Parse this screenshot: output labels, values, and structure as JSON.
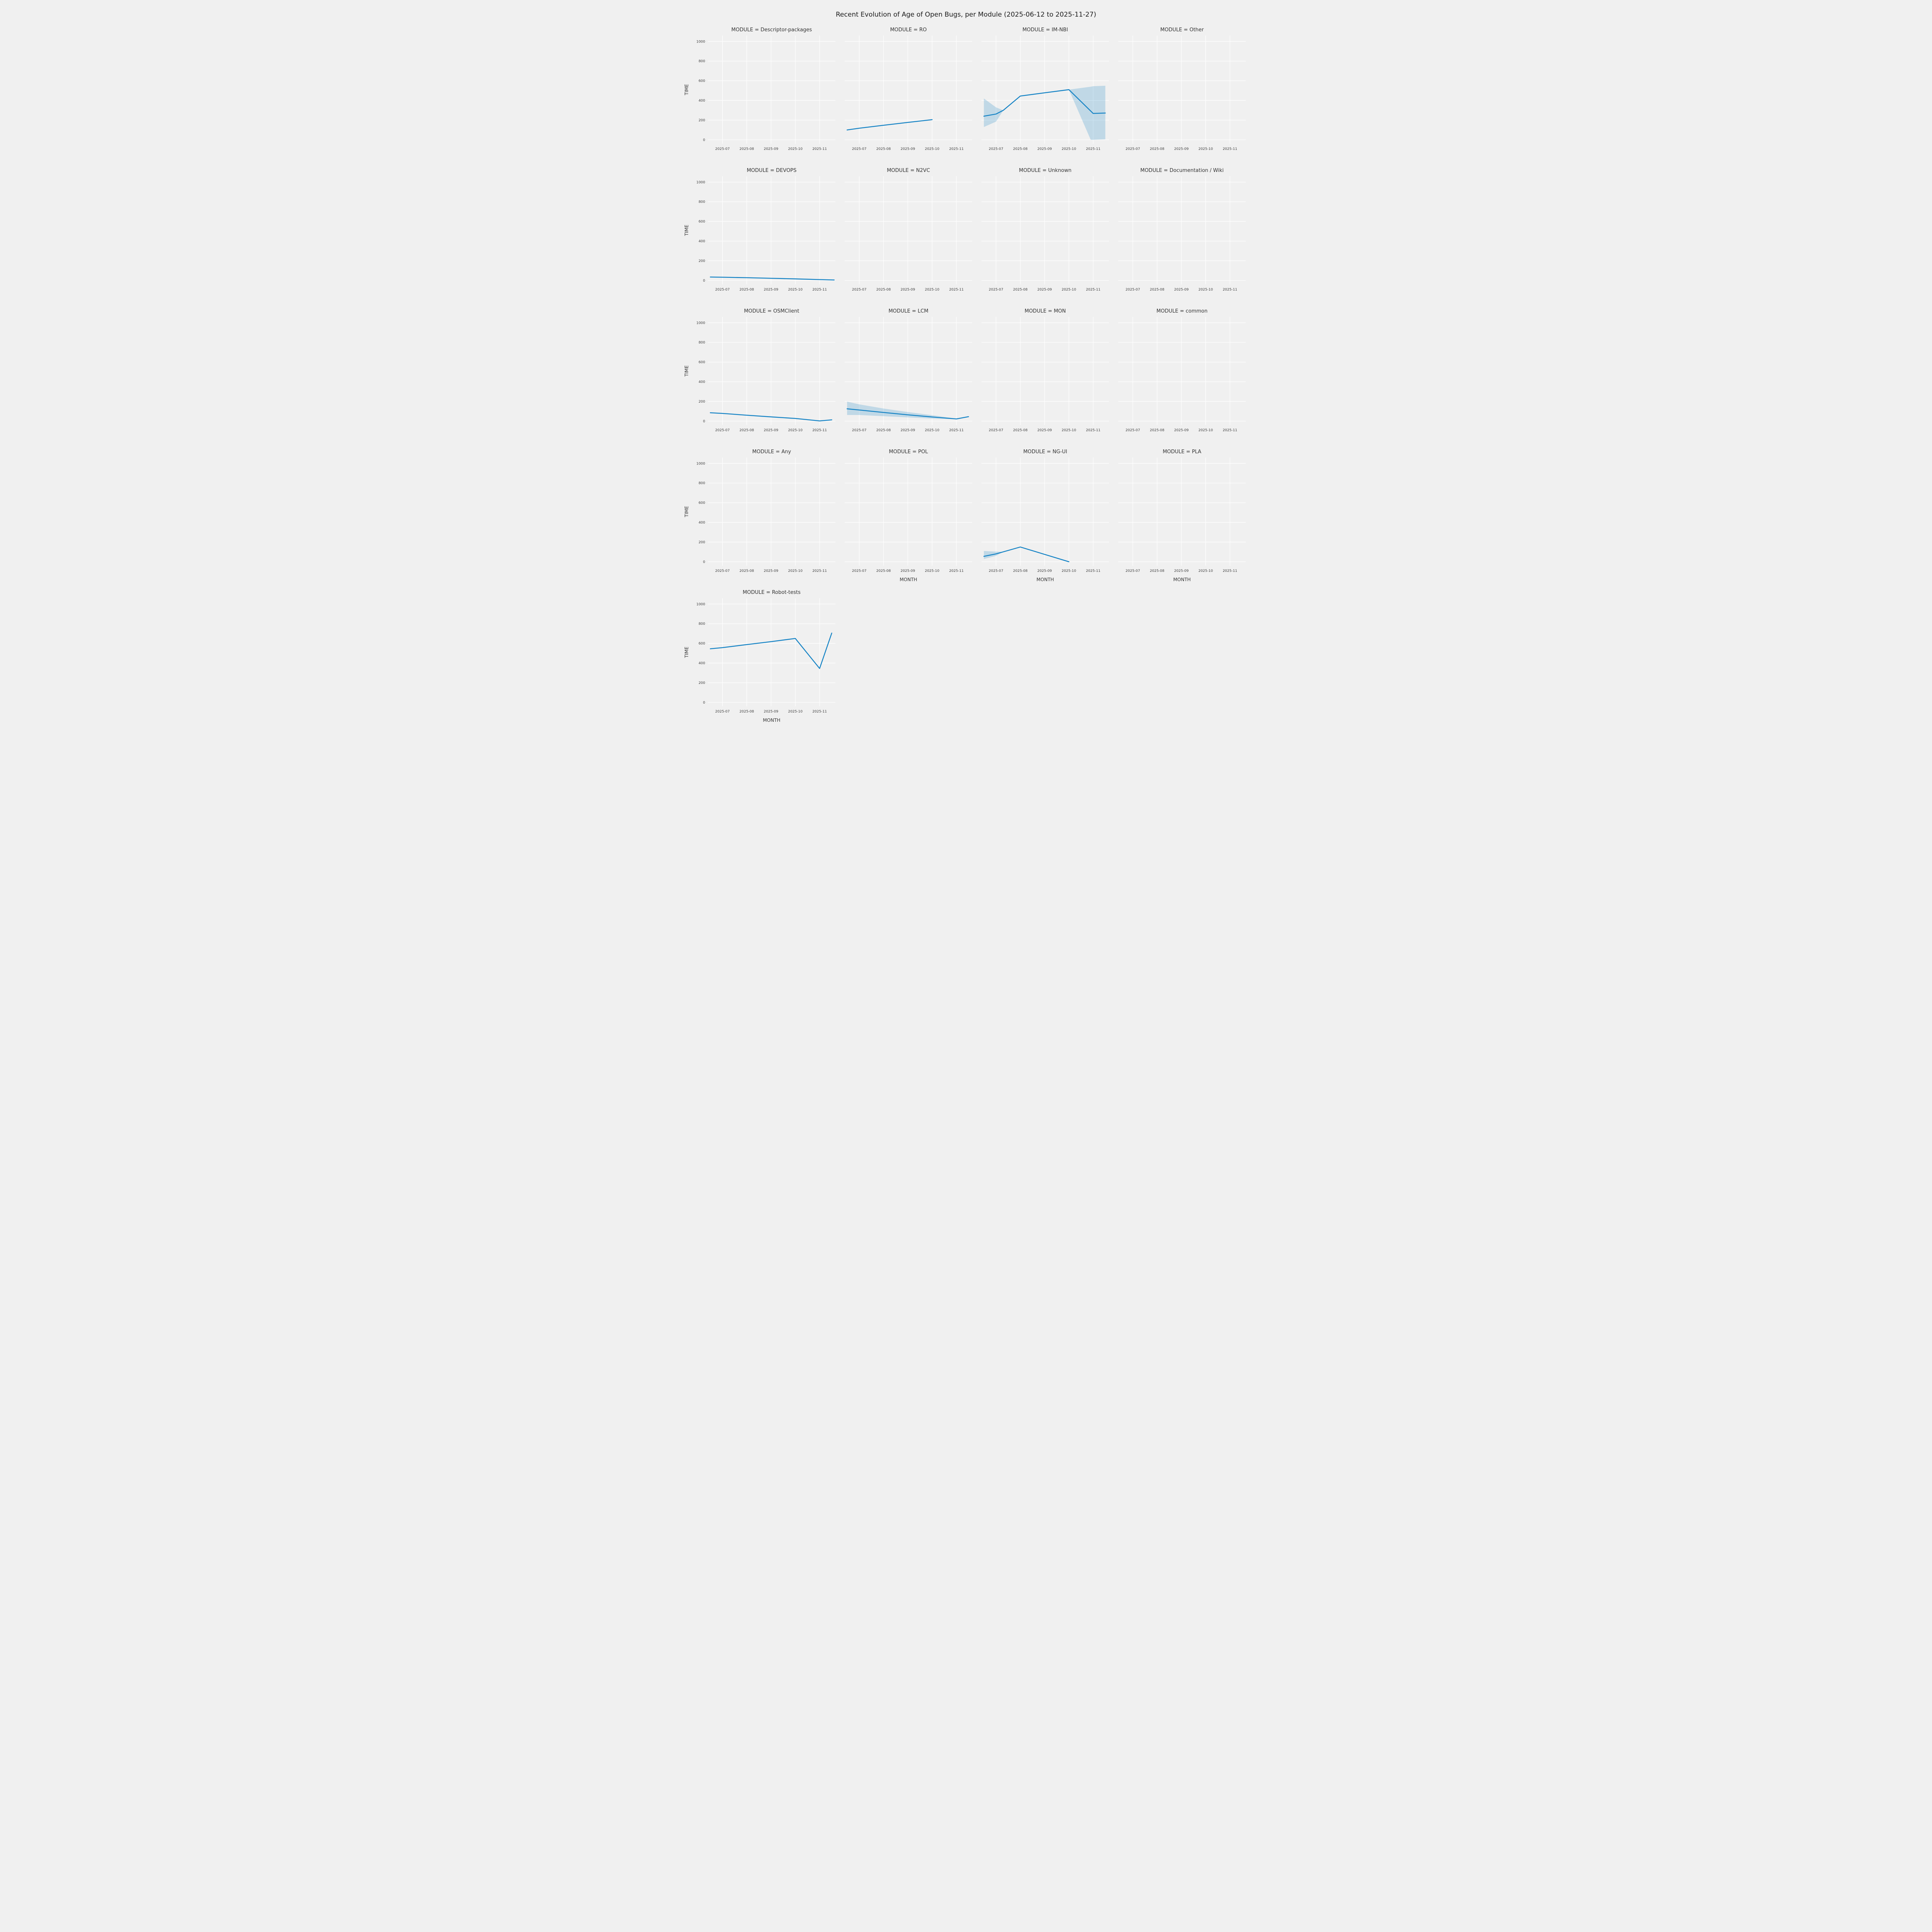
{
  "chart_data": {
    "type": "line",
    "title": "Recent Evolution of Age of Open Bugs, per Module (2025-06-12 to 2025-11-27)",
    "xlabel": "MONTH",
    "ylabel": "TIME",
    "xticks": [
      7,
      8,
      9,
      10,
      11
    ],
    "xtick_labels": [
      "2025-07",
      "2025-08",
      "2025-09",
      "2025-10",
      "2025-11"
    ],
    "yticks": [
      0,
      200,
      400,
      600,
      800,
      1000
    ],
    "xlim": [
      6.4,
      11.65
    ],
    "ylim": [
      -40,
      1060
    ],
    "grid": true,
    "legend": "none",
    "layout": {
      "cols": 4,
      "rows": 5
    },
    "colors": {
      "line": "#1583c5",
      "band": "#1583c5",
      "band_opacity": 0.22,
      "grid": "#ffffff",
      "background": "#f0f0f0",
      "title_text": "#333333",
      "tick_text": "#3f3f3f"
    },
    "facets": [
      {
        "label": "MODULE = Descriptor-packages",
        "x": [],
        "y": [],
        "xlabel": false
      },
      {
        "label": "MODULE = RO",
        "x": [
          6.5,
          7,
          8,
          9,
          10
        ],
        "y": [
          100,
          118,
          148,
          177,
          205
        ],
        "xlabel": false
      },
      {
        "label": "MODULE = IM-NBI",
        "x": [
          6.5,
          7,
          7.3,
          8,
          9,
          10,
          10.9,
          11,
          11.5
        ],
        "y": [
          240,
          262,
          300,
          445,
          478,
          510,
          292,
          268,
          272
        ],
        "low": [
          130,
          185,
          300,
          445,
          478,
          510,
          0,
          0,
          5
        ],
        "high": [
          420,
          330,
          300,
          445,
          478,
          510,
          540,
          545,
          550
        ],
        "xlabel": false
      },
      {
        "label": "MODULE = Other",
        "x": [],
        "y": [],
        "xlabel": false
      },
      {
        "label": "MODULE = DEVOPS",
        "x": [
          6.5,
          7,
          8,
          9,
          10,
          11,
          11.6
        ],
        "y": [
          35,
          33,
          28,
          22,
          16,
          9,
          5
        ],
        "xlabel": false
      },
      {
        "label": "MODULE = N2VC",
        "x": [],
        "y": [],
        "xlabel": false
      },
      {
        "label": "MODULE = Unknown",
        "x": [],
        "y": [],
        "xlabel": false
      },
      {
        "label": "MODULE = Documentation / Wiki",
        "x": [],
        "y": [],
        "xlabel": false
      },
      {
        "label": "MODULE = OSMClient",
        "x": [
          6.5,
          7,
          8,
          9,
          10,
          11,
          11.5
        ],
        "y": [
          85,
          78,
          60,
          43,
          27,
          2,
          13
        ],
        "xlabel": false
      },
      {
        "label": "MODULE = LCM",
        "x": [
          6.5,
          7,
          8,
          9,
          10,
          11,
          11.5
        ],
        "y": [
          125,
          113,
          88,
          64,
          42,
          22,
          45
        ],
        "low": [
          62,
          62,
          50,
          38,
          26,
          20,
          43
        ],
        "high": [
          198,
          170,
          128,
          92,
          60,
          26,
          48
        ],
        "xlabel": false
      },
      {
        "label": "MODULE = MON",
        "x": [],
        "y": [],
        "xlabel": false
      },
      {
        "label": "MODULE = common",
        "x": [],
        "y": [],
        "xlabel": false
      },
      {
        "label": "MODULE = Any",
        "x": [],
        "y": [],
        "xlabel": false
      },
      {
        "label": "MODULE = POL",
        "x": [],
        "y": [],
        "xlabel": true
      },
      {
        "label": "MODULE = NG-UI",
        "x": [
          6.5,
          7,
          7.3,
          8,
          9,
          10
        ],
        "y": [
          55,
          80,
          101,
          150,
          75,
          0
        ],
        "low": [
          28,
          60,
          101,
          150,
          75,
          0
        ],
        "high": [
          110,
          103,
          101,
          150,
          75,
          0
        ],
        "xlabel": true
      },
      {
        "label": "MODULE = PLA",
        "x": [],
        "y": [],
        "xlabel": true
      },
      {
        "label": "MODULE = Robot-tests",
        "x": [
          6.5,
          7,
          8,
          9,
          10,
          11,
          11.5
        ],
        "y": [
          545,
          557,
          588,
          618,
          650,
          345,
          705
        ],
        "xlabel": true
      }
    ]
  }
}
